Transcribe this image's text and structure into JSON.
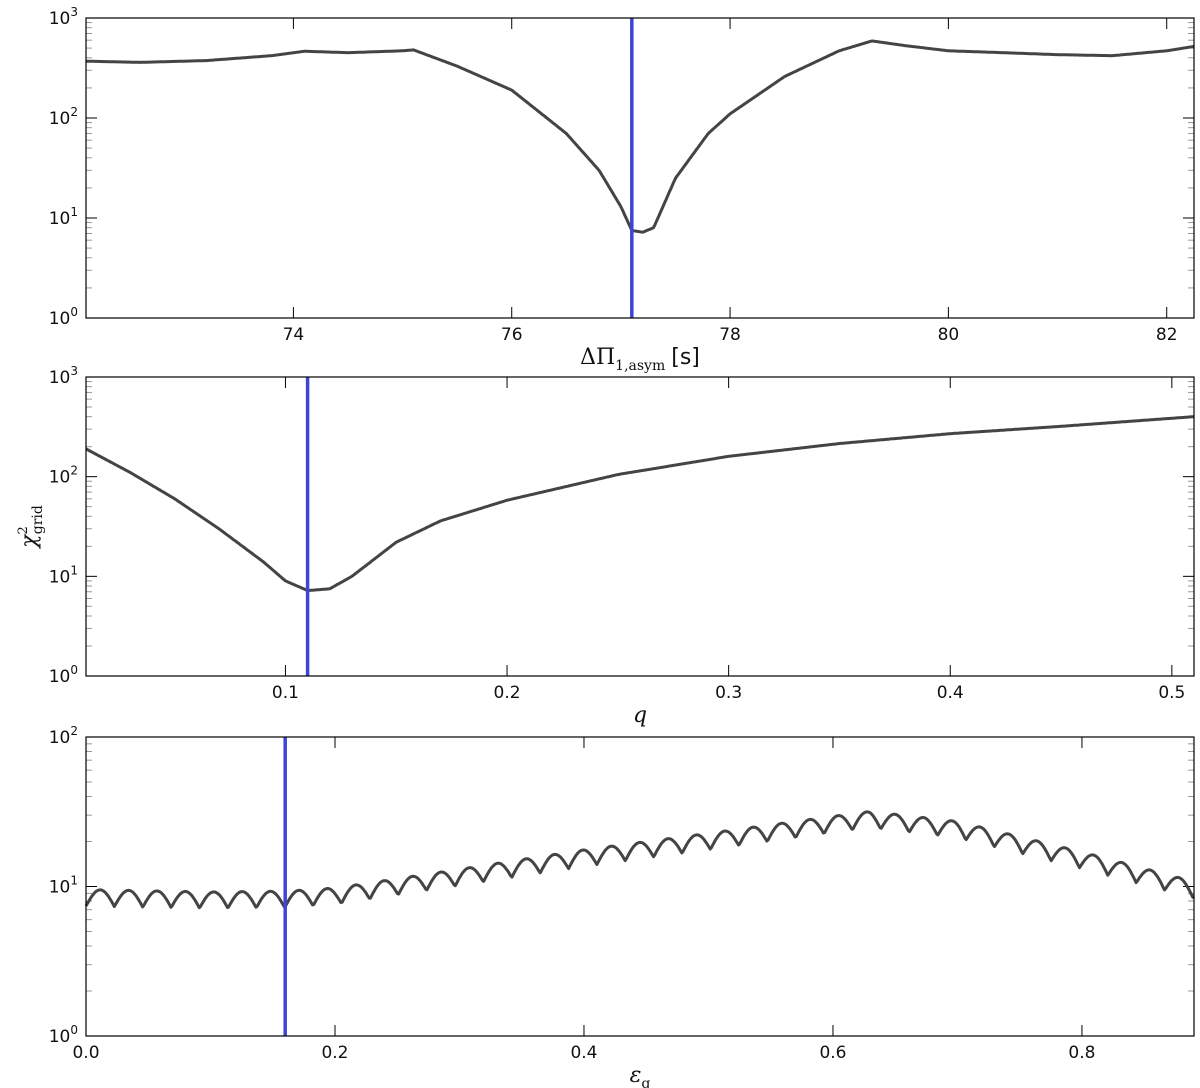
{
  "chart_data": [
    {
      "type": "line",
      "scale": "log",
      "xlabel": "ΔΠ",
      "xlabel_sub": "1,asym",
      "xlabel_unit": "[s]",
      "ylabel": "",
      "xlim": [
        72.1,
        82.25
      ],
      "ylim": [
        1,
        1000
      ],
      "xticks": [
        74,
        76,
        78,
        80,
        82
      ],
      "xtick_labels": [
        "74",
        "76",
        "78",
        "80",
        "82"
      ],
      "ytick_mantissa": "10",
      "ytick_exponents": [
        "0",
        "1",
        "2",
        "3"
      ],
      "marker_x": 77.1,
      "marker_color": "#3d44d6",
      "line_color": "#444444",
      "series": [
        {
          "x": [
            72.1,
            72.6,
            73.2,
            73.8,
            74.1,
            74.5,
            75.0,
            75.1,
            75.5,
            76.0,
            76.5,
            76.8,
            77.0,
            77.1,
            77.2,
            77.3,
            77.5,
            77.8,
            78.0,
            78.5,
            79.0,
            79.3,
            79.6,
            80.0,
            80.5,
            81.0,
            81.5,
            82.0,
            82.25
          ],
          "y": [
            370,
            360,
            375,
            420,
            465,
            450,
            470,
            480,
            330,
            190,
            70,
            30,
            13,
            7.5,
            7.2,
            8,
            25,
            70,
            110,
            260,
            470,
            590,
            530,
            470,
            450,
            430,
            420,
            470,
            520
          ]
        }
      ]
    },
    {
      "type": "line",
      "scale": "log",
      "xlabel": "q",
      "ylabel": "χ",
      "ylabel_sup": "2",
      "ylabel_sub": "grid",
      "xlim": [
        0.01,
        0.51
      ],
      "ylim": [
        1,
        1000
      ],
      "xticks": [
        0.1,
        0.2,
        0.3,
        0.4,
        0.5
      ],
      "xtick_labels": [
        "0.1",
        "0.2",
        "0.3",
        "0.4",
        "0.5"
      ],
      "ytick_mantissa": "10",
      "ytick_exponents": [
        "0",
        "1",
        "2",
        "3"
      ],
      "marker_x": 0.11,
      "marker_color": "#3d44d6",
      "line_color": "#444444",
      "series": [
        {
          "x": [
            0.01,
            0.03,
            0.05,
            0.07,
            0.09,
            0.1,
            0.11,
            0.12,
            0.13,
            0.15,
            0.17,
            0.2,
            0.25,
            0.3,
            0.35,
            0.4,
            0.45,
            0.51
          ],
          "y": [
            190,
            110,
            60,
            30,
            14,
            9,
            7.2,
            7.5,
            10,
            22,
            36,
            58,
            105,
            160,
            215,
            270,
            320,
            400
          ]
        }
      ]
    },
    {
      "type": "line",
      "scale": "log",
      "xlabel": "ε",
      "xlabel_sub": "g",
      "ylabel": "",
      "xlim": [
        0.0,
        0.89
      ],
      "ylim": [
        1,
        100
      ],
      "xticks": [
        0.0,
        0.2,
        0.4,
        0.6,
        0.8
      ],
      "xtick_labels": [
        "0.0",
        "0.2",
        "0.4",
        "0.6",
        "0.8"
      ],
      "ytick_mantissa": "10",
      "ytick_exponents": [
        "0",
        "1",
        "2"
      ],
      "marker_x": 0.16,
      "marker_color": "#3d44d6",
      "line_color": "#444444",
      "oscillation": {
        "period": 0.0228,
        "amplitude_log10": 0.055
      },
      "series": [
        {
          "x": [
            0.0,
            0.1,
            0.16,
            0.2,
            0.3,
            0.4,
            0.5,
            0.6,
            0.63,
            0.7,
            0.8,
            0.89
          ],
          "y": [
            8.4,
            8.1,
            8.2,
            8.6,
            11.5,
            15.5,
            20,
            26,
            28,
            24,
            15,
            9.5
          ]
        }
      ]
    }
  ]
}
